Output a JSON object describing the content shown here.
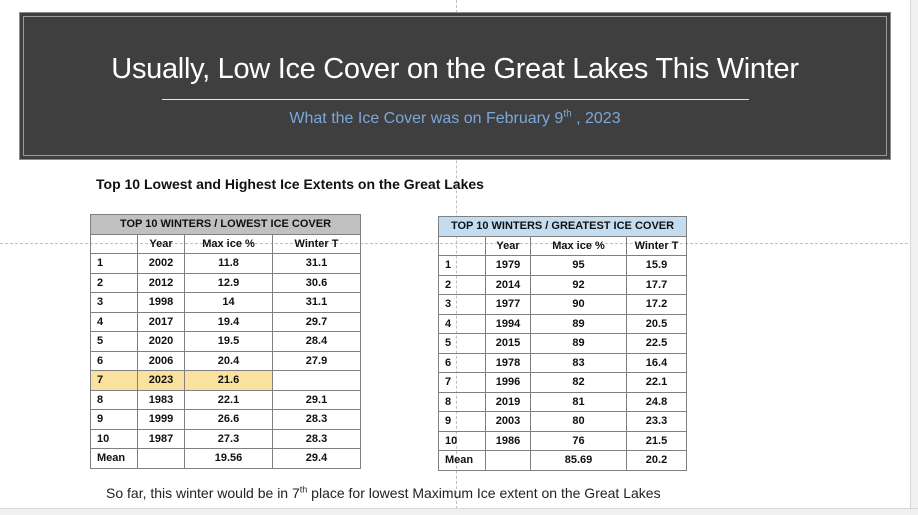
{
  "banner": {
    "title": "Usually, Low Ice Cover on the Great Lakes This Winter",
    "subtitle_main": "What the Ice Cover was on February 9",
    "subtitle_sup": "th",
    "subtitle_tail": " , 2023"
  },
  "section_title": "Top 10 Lowest and Highest Ice Extents on the Great Lakes",
  "lowest_table": {
    "header": "TOP 10 WINTERS  / LOWEST ICE COVER",
    "columns": [
      "",
      "Year",
      "Max ice %",
      "Winter T"
    ],
    "rows": [
      [
        "1",
        "2002",
        "11.8",
        "31.1"
      ],
      [
        "2",
        "2012",
        "12.9",
        "30.6"
      ],
      [
        "3",
        "1998",
        "14",
        "31.1"
      ],
      [
        "4",
        "2017",
        "19.4",
        "29.7"
      ],
      [
        "5",
        "2020",
        "19.5",
        "28.4"
      ],
      [
        "6",
        "2006",
        "20.4",
        "27.9"
      ],
      [
        "7",
        "2023",
        "21.6",
        ""
      ],
      [
        "8",
        "1983",
        "22.1",
        "29.1"
      ],
      [
        "9",
        "1999",
        "26.6",
        "28.3"
      ],
      [
        "10",
        "1987",
        "27.3",
        "28.3"
      ]
    ],
    "mean_row": [
      "Mean",
      "",
      "19.56",
      "29.4"
    ],
    "highlight_row_index": 6,
    "highlight_color": "#fbe1a0"
  },
  "greatest_table": {
    "header": "TOP 10 WINTERS  / GREATEST ICE COVER",
    "columns": [
      "",
      "Year",
      "Max ice %",
      "Winter T"
    ],
    "rows": [
      [
        "1",
        "1979",
        "95",
        "15.9"
      ],
      [
        "2",
        "2014",
        "92",
        "17.7"
      ],
      [
        "3",
        "1977",
        "90",
        "17.2"
      ],
      [
        "4",
        "1994",
        "89",
        "20.5"
      ],
      [
        "5",
        "2015",
        "89",
        "22.5"
      ],
      [
        "6",
        "1978",
        "83",
        "16.4"
      ],
      [
        "7",
        "1996",
        "82",
        "22.1"
      ],
      [
        "8",
        "2019",
        "81",
        "24.8"
      ],
      [
        "9",
        "2003",
        "80",
        "23.3"
      ],
      [
        "10",
        "1986",
        "76",
        "21.5"
      ]
    ],
    "mean_row": [
      "Mean",
      "",
      "85.69",
      "20.2"
    ]
  },
  "footnote": {
    "before": "So far, this winter would be in 7",
    "sup": "th",
    "after": " place for lowest  Maximum Ice  extent on the Great Lakes"
  },
  "colors": {
    "banner_bg": "#3f3f3f",
    "subtitle": "#7ca7d9",
    "left_header_bg": "#c0c0c0",
    "right_header_bg": "#c4dcf0"
  }
}
